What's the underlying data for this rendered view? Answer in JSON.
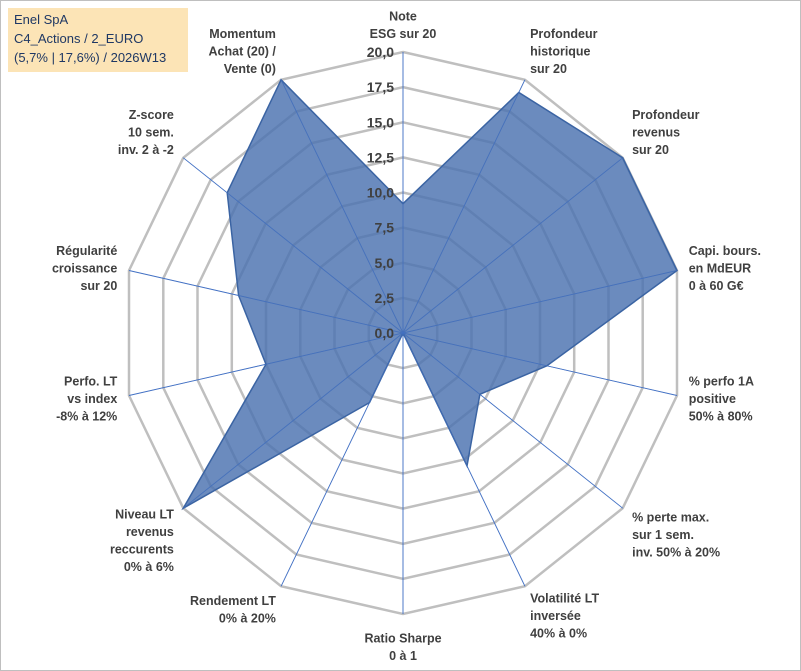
{
  "header": {
    "line1": "Enel SpA",
    "line2": "C4_Actions / 2_EURO",
    "line3": "(5,7% | 17,6%) / 2026W13"
  },
  "chart_data": {
    "type": "radar",
    "title": "",
    "rmin": 0,
    "rmax": 20,
    "ticks": [
      "0,0",
      "2,5",
      "5,0",
      "7,5",
      "10,0",
      "12,5",
      "15,0",
      "17,5",
      "20,0"
    ],
    "axes": [
      [
        "Note",
        "ESG sur 20"
      ],
      [
        "Profondeur",
        "historique",
        "sur 20"
      ],
      [
        "Profondeur",
        "revenus",
        "sur 20"
      ],
      [
        "Capi. bours.",
        "en MdEUR",
        "0 à 60 G€"
      ],
      [
        "% perfo 1A",
        "positive",
        "50% à 80%"
      ],
      [
        "% perte max.",
        "sur 1 sem.",
        "inv. 50% à 20%"
      ],
      [
        "Volatilité LT",
        "inversée",
        "40% à 0%"
      ],
      [
        "Ratio Sharpe",
        "0 à 1"
      ],
      [
        "Rendement LT",
        "0% à 20%"
      ],
      [
        "Niveau LT",
        "revenus",
        "reccurents",
        "0% à 6%"
      ],
      [
        "Perfo. LT",
        "vs index",
        "-8% à 12%"
      ],
      [
        "Régularité",
        "croissance",
        "sur 20"
      ],
      [
        "Z-score",
        "10 sem.",
        "inv. 2 à -2"
      ],
      [
        "Momentum",
        "Achat (20) /",
        "Vente (0)"
      ]
    ],
    "series": [
      {
        "name": "Enel SpA",
        "values": [
          9.2,
          19.0,
          20.0,
          20.0,
          10.5,
          7.0,
          10.5,
          0.0,
          5.5,
          20.0,
          10.0,
          12.0,
          16.0,
          20.0
        ]
      }
    ],
    "colors": {
      "fill": "#4a72b0",
      "stroke": "#3b64a3",
      "grid": "#bfbfbf",
      "spoke": "#4472c4"
    }
  }
}
